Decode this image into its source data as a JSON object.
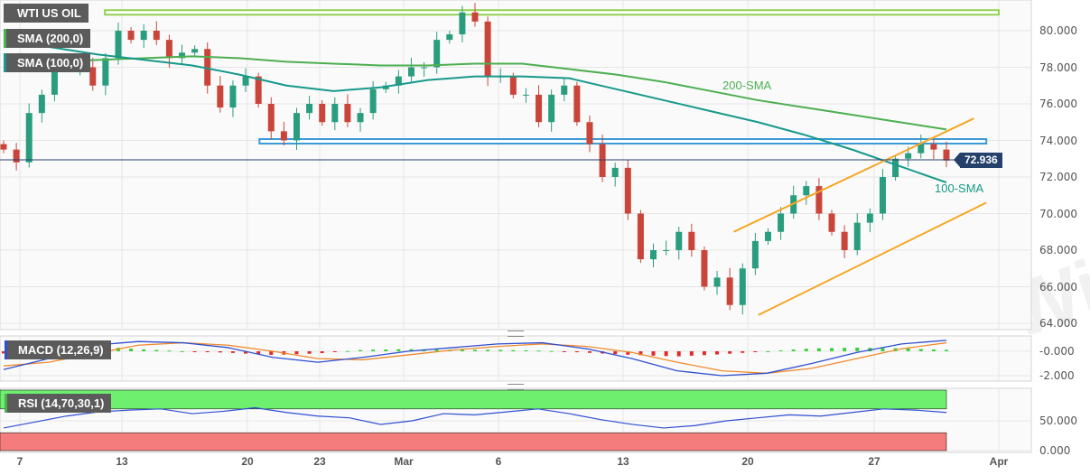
{
  "chart_data": {
    "type": "candlestick",
    "title": "WTI US OIL",
    "last_price": "72.936",
    "price_ticks": [
      "80.000",
      "78.000",
      "76.000",
      "74.000",
      "72.000",
      "70.000",
      "68.000",
      "66.000",
      "64.000"
    ],
    "price_tick_values": [
      80,
      78,
      76,
      74,
      72,
      70,
      68,
      66,
      64
    ],
    "x_ticks": [
      "7",
      "13",
      "20",
      "23",
      "Mar",
      "6",
      "13",
      "20",
      "27",
      "Apr"
    ],
    "x_tick_dates": [
      "Feb 7",
      "Feb 13",
      "Feb 20",
      "Feb 23",
      "Mar 1",
      "Mar 6",
      "Mar 13",
      "Mar 20",
      "Mar 27",
      "Apr 1"
    ],
    "closes": [
      73.5,
      72.8,
      75.5,
      76.5,
      78,
      78,
      78,
      77,
      78.5,
      80,
      79.5,
      80,
      79.5,
      78.5,
      78.8,
      79,
      77,
      75.8,
      77,
      77.5,
      76,
      74.5,
      74,
      75.5,
      76,
      75,
      76,
      75,
      75.5,
      76.8,
      77,
      77.5,
      78,
      78,
      79.5,
      79.8,
      81,
      80.5,
      77.5,
      77.5,
      76.5,
      76.5,
      75,
      76.5,
      77,
      75,
      73.8,
      72,
      72.5,
      70,
      67.5,
      68,
      68,
      69,
      68,
      66,
      66.5,
      65,
      67,
      68.5,
      69,
      70,
      71,
      71.5,
      70,
      69,
      68,
      69.5,
      70,
      72,
      73,
      73.3,
      73.8,
      73.5,
      72.9
    ],
    "sma200": {
      "label": "SMA (200,0)",
      "annotation": "200-SMA",
      "color": "#4caf50",
      "values": [
        78.3,
        78.3,
        78.4,
        78.5,
        78.6,
        78.5,
        78.3,
        78.2,
        78.1,
        78.1,
        78.2,
        78.2,
        77.9,
        77.6,
        77.2,
        76.7,
        76.2,
        75.8,
        75.4,
        75.0,
        74.6
      ]
    },
    "sma100": {
      "label": "SMA (100,0)",
      "annotation": "100-SMA",
      "color": "#16998a",
      "values": [
        79.5,
        79.1,
        78.7,
        78.4,
        78.1,
        77.6,
        77.0,
        76.7,
        76.9,
        77.3,
        77.5,
        77.5,
        77.4,
        76.8,
        76.2,
        75.6,
        75.0,
        74.3,
        73.5,
        72.6,
        71.7
      ]
    },
    "levels": [
      {
        "price": 81.0,
        "from": "Feb 12",
        "to": "Apr 1",
        "color": "#8fd14f"
      },
      {
        "price": 73.95,
        "from": "Feb 20 12:00",
        "to": "Mar 31 12:00",
        "color": "#3a9ad9"
      }
    ],
    "channel": {
      "color": "#f5a623",
      "lines": [
        {
          "from": [
            "Mar 19 05:00",
            69.0
          ],
          "to": [
            "Mar 31",
            75.2
          ]
        },
        {
          "from": [
            "Mar 20 14:00",
            64.45
          ],
          "to": [
            "Mar 31 12:00",
            70.6
          ]
        }
      ]
    },
    "up_color": "#2a9d7f",
    "down_color": "#c9453a",
    "macd": {
      "label": "MACD (12,26,9)",
      "ticks": [
        "-0.000",
        "-2.000"
      ],
      "tick_values": [
        0,
        -2
      ],
      "macd": [
        -1.5,
        -0.6,
        0.5,
        0.8,
        0.7,
        0.3,
        -0.5,
        -0.9,
        -0.5,
        0,
        0.3,
        0.6,
        0.7,
        0.2,
        -0.6,
        -1.6,
        -2.0,
        -1.8,
        -1.0,
        -0.1,
        0.6,
        0.9
      ],
      "signal": [
        -1.2,
        -0.9,
        -0.2,
        0.5,
        0.7,
        0.5,
        0.0,
        -0.6,
        -0.7,
        -0.3,
        0.1,
        0.4,
        0.6,
        0.4,
        -0.1,
        -0.9,
        -1.6,
        -1.8,
        -1.4,
        -0.6,
        0.2,
        0.7
      ],
      "macd_color": "#2f4fd0",
      "signal_color": "#f08a2c"
    },
    "rsi": {
      "label": "RSI (14,70,30,1)",
      "ticks": [
        "50.000",
        "0.000"
      ],
      "tick_values": [
        50,
        0
      ],
      "overbought": 70,
      "oversold": 30,
      "values": [
        38,
        48,
        58,
        65,
        68,
        70,
        62,
        66,
        72,
        64,
        58,
        55,
        44,
        50,
        62,
        60,
        65,
        70,
        62,
        52,
        44,
        38,
        42,
        50,
        55,
        60,
        58,
        64,
        70,
        68,
        64
      ],
      "line_color": "#2f4fd0"
    }
  },
  "watermark": "WikiFX"
}
